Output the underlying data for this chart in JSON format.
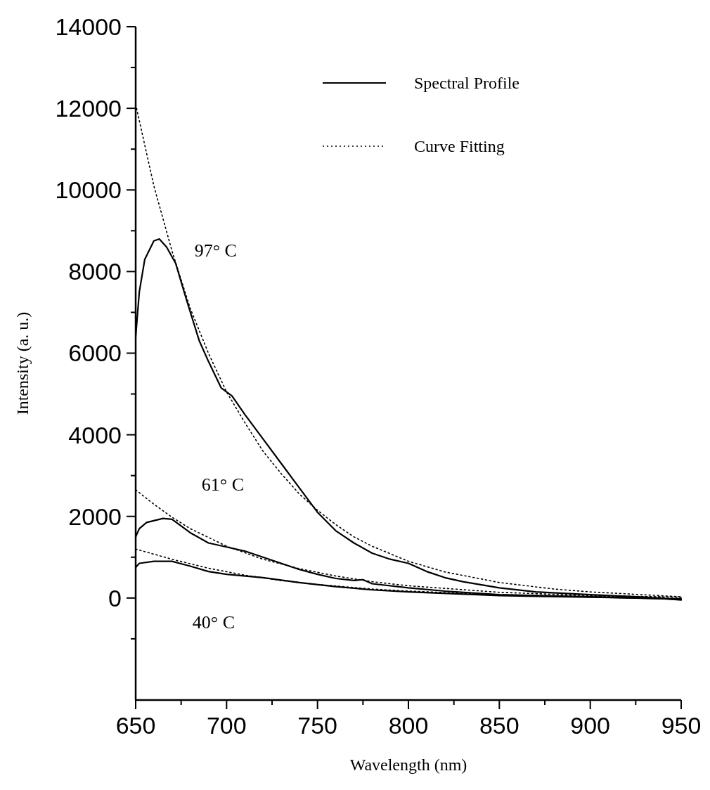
{
  "chart_data": {
    "type": "line",
    "xlabel": "Wavelength (nm)",
    "ylabel": "Intensity (a. u.)",
    "xlim": [
      650,
      950
    ],
    "ylim": [
      -2500,
      14000
    ],
    "xticks": [
      650,
      {
        "value": 675,
        "label": null
      },
      700,
      {
        "value": 725,
        "label": null
      },
      750,
      {
        "value": 775,
        "label": null
      },
      800,
      {
        "value": 825,
        "label": null
      },
      850,
      {
        "value": 875,
        "label": null
      },
      900,
      {
        "value": 925,
        "label": null
      },
      950
    ],
    "yticks": [
      {
        "value": -1000,
        "label": null
      },
      0,
      {
        "value": 1000,
        "label": null
      },
      2000,
      {
        "value": 3000,
        "label": null
      },
      4000,
      {
        "value": 5000,
        "label": null
      },
      6000,
      {
        "value": 7000,
        "label": null
      },
      8000,
      {
        "value": 9000,
        "label": null
      },
      10000,
      {
        "value": 11000,
        "label": null
      },
      12000,
      {
        "value": 13000,
        "label": null
      },
      14000
    ],
    "grid": false,
    "legend": "top right",
    "marker": "none",
    "series": [
      {
        "name": "Spectral Profile",
        "color": "#000000",
        "line_style": "solid",
        "x": [
          650,
          652,
          655,
          660,
          663,
          667,
          672,
          678,
          685,
          690,
          697,
          703,
          710,
          720,
          730,
          740,
          750,
          760,
          770,
          780,
          790,
          800,
          810,
          820,
          830,
          850,
          870,
          900,
          930,
          950
        ],
        "values": [
          6400,
          7500,
          8300,
          8750,
          8800,
          8600,
          8200,
          7300,
          6300,
          5800,
          5150,
          4950,
          4500,
          3900,
          3300,
          2700,
          2100,
          1650,
          1350,
          1100,
          950,
          850,
          650,
          500,
          400,
          250,
          150,
          80,
          20,
          -50
        ]
      },
      {
        "name": "Curve Fitting",
        "color": "#000000",
        "line_style": "dotted",
        "x": [
          650,
          660,
          670,
          680,
          690,
          700,
          710,
          720,
          730,
          740,
          750,
          760,
          770,
          780,
          800,
          820,
          850,
          880,
          900,
          950
        ],
        "values": [
          12100,
          10100,
          8500,
          7100,
          6000,
          5050,
          4300,
          3600,
          3050,
          2550,
          2150,
          1800,
          1500,
          1270,
          900,
          640,
          380,
          220,
          150,
          30
        ]
      },
      {
        "color": "#000000",
        "line_style": "solid",
        "x": [
          650,
          652,
          656,
          665,
          670,
          680,
          690,
          700,
          710,
          720,
          730,
          740,
          750,
          760,
          770,
          775,
          780,
          800,
          820,
          850,
          900,
          950
        ],
        "values": [
          1500,
          1700,
          1850,
          1950,
          1930,
          1600,
          1350,
          1250,
          1150,
          1000,
          850,
          700,
          580,
          480,
          430,
          450,
          350,
          250,
          170,
          80,
          30,
          -30
        ]
      },
      {
        "color": "#000000",
        "line_style": "dotted",
        "x": [
          650,
          660,
          670,
          680,
          700,
          720,
          740,
          760,
          780,
          800,
          850,
          900,
          950
        ],
        "values": [
          2650,
          2300,
          1980,
          1700,
          1270,
          950,
          720,
          540,
          400,
          300,
          140,
          60,
          20
        ]
      },
      {
        "color": "#000000",
        "line_style": "solid",
        "x": [
          650,
          652,
          660,
          670,
          680,
          690,
          700,
          720,
          740,
          760,
          780,
          800,
          850,
          900,
          950
        ],
        "values": [
          750,
          850,
          900,
          900,
          780,
          650,
          580,
          500,
          380,
          280,
          200,
          150,
          60,
          20,
          -20
        ]
      },
      {
        "color": "#000000",
        "line_style": "dotted",
        "x": [
          650,
          670,
          690,
          710,
          730,
          750,
          780,
          800,
          850,
          900,
          950
        ],
        "values": [
          1200,
          950,
          730,
          560,
          430,
          330,
          220,
          170,
          80,
          40,
          20
        ]
      }
    ],
    "annotations": [
      "97° C",
      "61° C",
      "40° C"
    ]
  }
}
